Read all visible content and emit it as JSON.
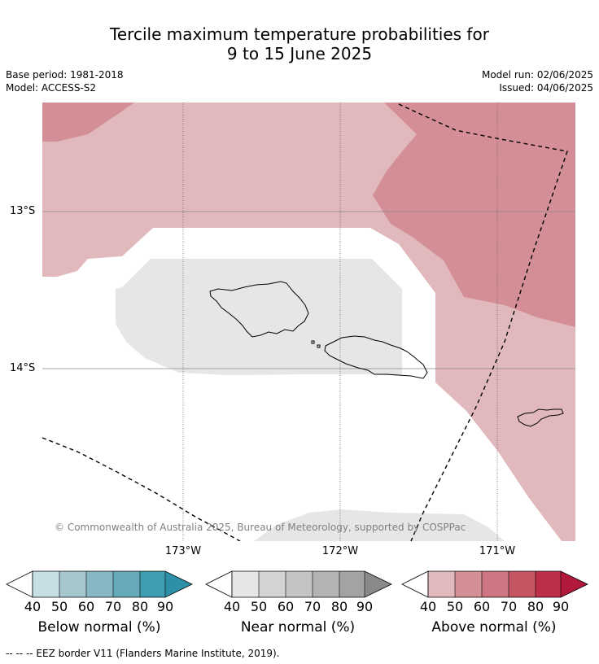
{
  "title_line1": "Tercile maximum temperature probabilities for",
  "title_line2": "9 to 15 June 2025",
  "meta": {
    "base_period": "Base period: 1981-2018",
    "model": "Model: ACCESS-S2",
    "model_run": "Model run: 02/06/2025",
    "issued": "Issued: 04/06/2025"
  },
  "map": {
    "lat_labels": [
      "13°S",
      "14°S"
    ],
    "lon_labels": [
      "173°W",
      "172°W",
      "171°W"
    ],
    "copyright": "© Commonwealth of Australia 2025, Bureau of Meteorology, supported by COSPPac",
    "colors": {
      "above_50": "#e1b9bd",
      "above_60": "#d48e96",
      "near_50": "#e6e6e6"
    }
  },
  "colorbars": [
    {
      "label": "Below normal (%)",
      "ticks": [
        "40",
        "50",
        "60",
        "70",
        "80",
        "90"
      ],
      "colors": [
        "#c5dfe5",
        "#a5c6cd",
        "#87b7c4",
        "#66aab9",
        "#3f9db2"
      ],
      "arrow_color": "#2d90a6"
    },
    {
      "label": "Near normal (%)",
      "ticks": [
        "40",
        "50",
        "60",
        "70",
        "80",
        "90"
      ],
      "colors": [
        "#e6e6e6",
        "#d4d4d4",
        "#c4c4c4",
        "#b3b3b3",
        "#a3a3a3"
      ],
      "arrow_color": "#8a8a8a"
    },
    {
      "label": "Above normal (%)",
      "ticks": [
        "40",
        "50",
        "60",
        "70",
        "80",
        "90"
      ],
      "colors": [
        "#e1b9bd",
        "#d48e96",
        "#cd7580",
        "#c65564",
        "#bd2e4a"
      ],
      "arrow_color": "#b2183a"
    }
  ],
  "footer": "--  --  -- EEZ border V11 (Flanders Marine Institute, 2019)."
}
